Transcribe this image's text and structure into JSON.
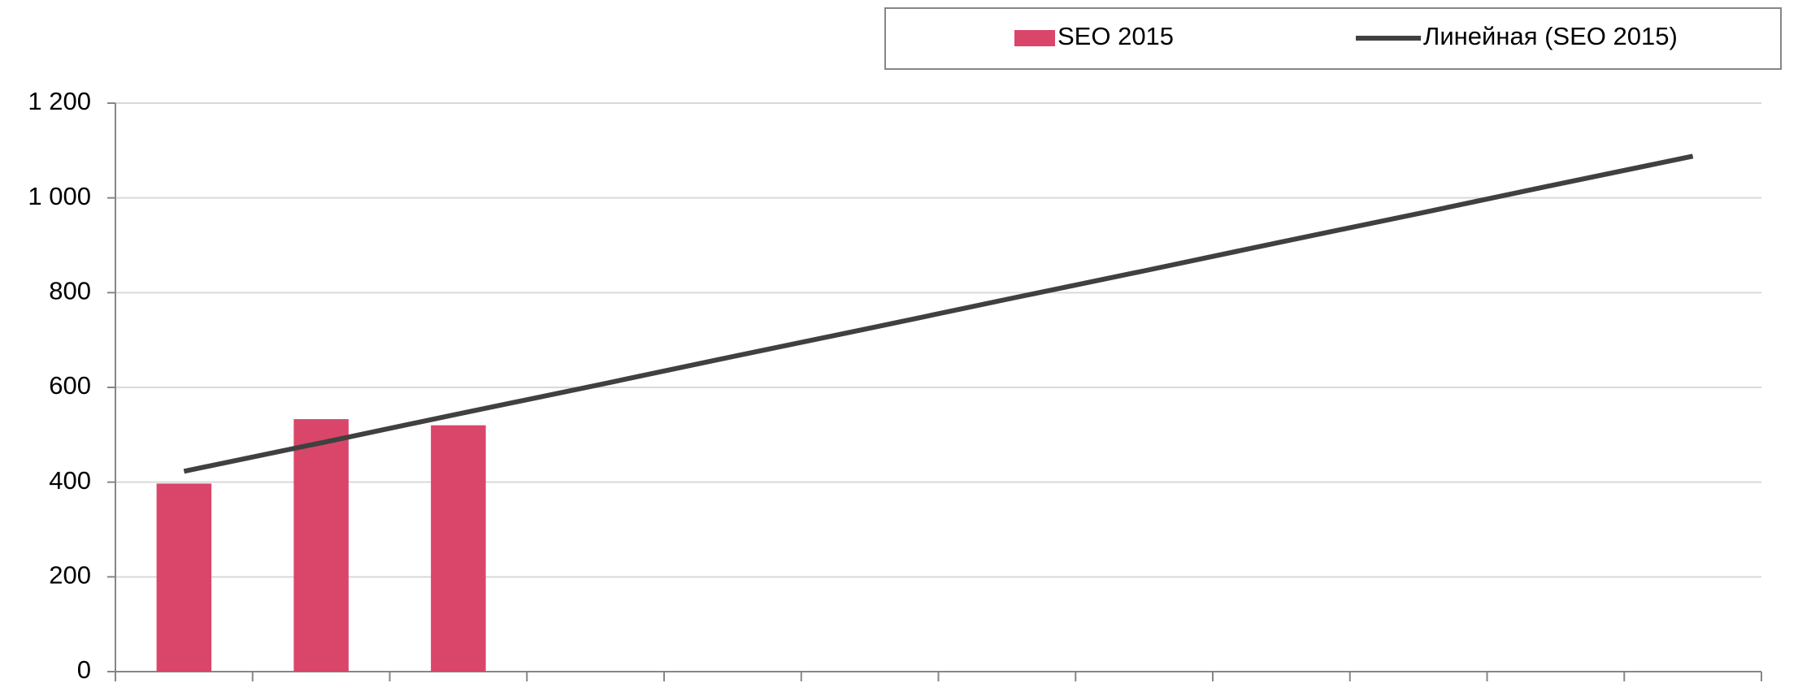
{
  "chart_data": {
    "type": "bar",
    "categories": [
      null,
      null,
      null,
      null,
      null,
      null,
      null,
      null,
      null,
      null,
      null,
      null
    ],
    "series": [
      {
        "name": "SEO 2015",
        "type": "bar",
        "color": "#d9466a",
        "values": [
          397,
          533,
          520,
          null,
          null,
          null,
          null,
          null,
          null,
          null,
          null,
          null
        ]
      },
      {
        "name": "Линейная (SEO 2015)",
        "type": "line",
        "color": "#404040",
        "values": [
          423,
          483,
          544,
          604,
          665,
          725,
          786,
          846,
          907,
          967,
          1028,
          1088
        ]
      }
    ],
    "ylim": [
      0,
      1200
    ],
    "yticks": [
      0,
      200,
      400,
      600,
      800,
      {
        "value": 1000,
        "label": "1 000"
      },
      {
        "value": 1200,
        "label": "1 200"
      }
    ],
    "grid": true,
    "legend": "top-right"
  }
}
